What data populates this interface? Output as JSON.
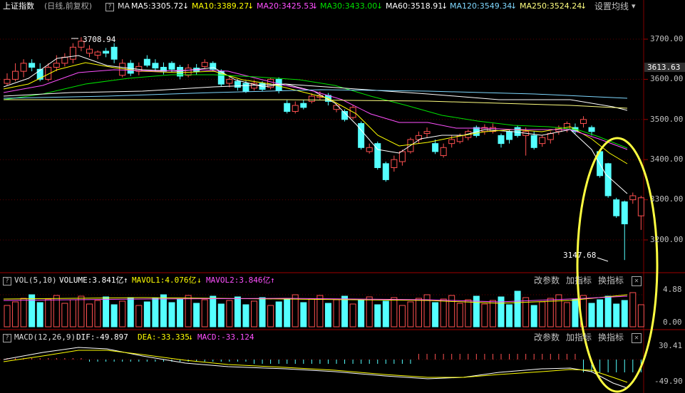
{
  "header": {
    "index_name": "上证指数",
    "period": "(日线,前复权)",
    "question_mark": "?",
    "ma_prefix": "MA",
    "ma5": "MA5:3305.72",
    "ma10": "MA10:3389.27",
    "ma20": "MA20:3425.53",
    "ma30": "MA30:3433.00",
    "ma60": "MA60:3518.91",
    "ma120": "MA120:3549.34",
    "ma250": "MA250:3524.24",
    "down_arrow": "↓",
    "settings": "设置均线",
    "dropdown": "▾"
  },
  "price_axis": {
    "ticks": [
      "3700.00",
      "3600.00",
      "3500.00",
      "3400.00",
      "3300.00",
      "3200.00"
    ],
    "current": "3613.63"
  },
  "annotations": {
    "high": "3708.94",
    "low": "3147.68"
  },
  "volume_bar": {
    "question_mark": "?",
    "title": "VOL(5,10)",
    "volume": "VOLUME:3.841亿",
    "mavol1": "MAVOL1:4.076亿",
    "mavol2": "MAVOL2:3.846亿",
    "up_arrow": "↑",
    "down_arrow": "↓",
    "change_params": "改参数",
    "add_indicator": "加指标",
    "switch_indicator": "换指标",
    "close": "✕",
    "axis_top": "4.88",
    "axis_bottom": "0.00"
  },
  "macd_bar": {
    "question_mark": "?",
    "title": "MACD(12,26,9)",
    "dif": "DIF:-49.897",
    "dea": "DEA:-33.335",
    "macd": "MACD:-33.124",
    "down_arrow": "↓",
    "change_params": "改参数",
    "add_indicator": "加指标",
    "switch_indicator": "换指标",
    "close": "✕",
    "axis_top": "30.41",
    "axis_bottom": "-49.90"
  },
  "colors": {
    "up": "#ff5050",
    "down": "#54ffff",
    "ma5": "#ffffff",
    "ma10": "#ffff00",
    "ma20": "#ff50ff",
    "ma30": "#00e000",
    "ma60": "#ffffff",
    "ma120": "#7fd8ff",
    "ma250": "#ffff80",
    "grid": "#600000",
    "highlight": "#ffff40"
  }
}
